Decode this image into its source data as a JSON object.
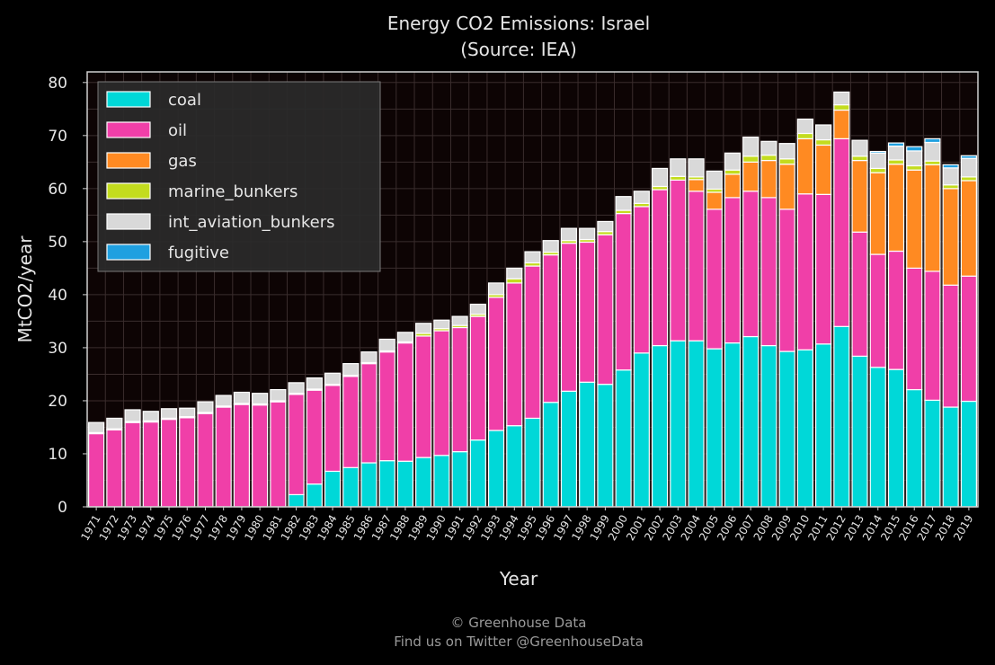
{
  "chart_data": {
    "type": "bar",
    "stacked": true,
    "title": "Energy CO2 Emissions: Israel",
    "subtitle": "(Source: IEA)",
    "xlabel": "Year",
    "ylabel": "MtCO2/year",
    "ylim": [
      0,
      82
    ],
    "yticks": [
      0,
      10,
      20,
      30,
      40,
      50,
      60,
      70,
      80
    ],
    "grid": true,
    "legend_position": "top-left",
    "categories": [
      "1971",
      "1972",
      "1973",
      "1974",
      "1975",
      "1976",
      "1977",
      "1978",
      "1979",
      "1980",
      "1981",
      "1982",
      "1983",
      "1984",
      "1985",
      "1986",
      "1987",
      "1988",
      "1989",
      "1990",
      "1991",
      "1992",
      "1993",
      "1994",
      "1995",
      "1996",
      "1997",
      "1998",
      "1999",
      "2000",
      "2001",
      "2002",
      "2003",
      "2004",
      "2005",
      "2006",
      "2007",
      "2008",
      "2009",
      "2010",
      "2011",
      "2012",
      "2013",
      "2014",
      "2015",
      "2016",
      "2017",
      "2018",
      "2019"
    ],
    "series": [
      {
        "name": "coal",
        "color": "#00d8d8",
        "values": [
          0,
          0,
          0,
          0,
          0,
          0,
          0,
          0,
          0,
          0,
          0,
          2.3,
          4.3,
          6.7,
          7.4,
          8.3,
          8.7,
          8.6,
          9.3,
          9.7,
          10.4,
          12.6,
          14.4,
          15.3,
          16.7,
          19.7,
          21.8,
          23.5,
          23.1,
          25.8,
          29.0,
          30.4,
          31.3,
          31.3,
          29.8,
          30.9,
          32.1,
          30.4,
          29.3,
          29.6,
          30.7,
          34.0,
          28.4,
          26.3,
          25.9,
          22.1,
          20.1,
          18.8,
          19.9
        ]
      },
      {
        "name": "oil",
        "color": "#f03fa8",
        "values": [
          13.8,
          14.5,
          15.9,
          16.0,
          16.5,
          16.8,
          17.6,
          18.8,
          19.3,
          19.2,
          19.8,
          18.9,
          17.7,
          16.2,
          17.2,
          18.7,
          20.5,
          22.3,
          22.9,
          23.5,
          23.4,
          23.3,
          25.1,
          26.9,
          28.7,
          27.8,
          27.9,
          26.4,
          28.2,
          29.5,
          27.6,
          29.4,
          30.3,
          28.2,
          26.3,
          27.4,
          27.4,
          27.9,
          26.8,
          29.4,
          28.2,
          35.4,
          23.4,
          21.3,
          22.3,
          22.9,
          24.3,
          23.0,
          23.6
        ]
      },
      {
        "name": "gas",
        "color": "#ff8a22",
        "values": [
          0,
          0,
          0,
          0,
          0,
          0,
          0,
          0,
          0,
          0,
          0,
          0,
          0,
          0,
          0,
          0,
          0,
          0,
          0,
          0,
          0,
          0,
          0,
          0,
          0,
          0,
          0,
          0,
          0,
          0,
          0,
          0,
          0,
          2.2,
          3.2,
          4.4,
          5.5,
          7.0,
          8.5,
          10.4,
          9.3,
          5.4,
          13.5,
          15.4,
          16.4,
          18.5,
          20.1,
          18.2,
          18.0
        ]
      },
      {
        "name": "marine_bunkers",
        "color": "#c3dc1e",
        "values": [
          0.2,
          0.2,
          0.2,
          0.2,
          0.2,
          0.2,
          0.2,
          0.2,
          0.2,
          0.2,
          0.2,
          0.2,
          0.2,
          0.2,
          0.2,
          0.2,
          0.2,
          0.2,
          0.5,
          0.4,
          0.4,
          0.4,
          0.5,
          0.8,
          0.6,
          0.5,
          0.5,
          0.5,
          0.6,
          0.6,
          0.6,
          0.6,
          0.7,
          0.5,
          0.6,
          0.8,
          1.1,
          1.0,
          1.0,
          1.0,
          1.0,
          1.0,
          0.8,
          0.8,
          0.8,
          0.8,
          0.7,
          0.7,
          0.7
        ]
      },
      {
        "name": "int_aviation_bunkers",
        "color": "#d9d9d9",
        "values": [
          1.9,
          2.0,
          2.2,
          1.8,
          1.8,
          1.6,
          2.0,
          2.0,
          2.1,
          2.0,
          2.1,
          2.0,
          2.1,
          2.1,
          2.2,
          2.0,
          2.2,
          1.8,
          1.9,
          1.6,
          1.7,
          1.9,
          2.2,
          2.0,
          2.1,
          2.2,
          2.3,
          2.1,
          1.9,
          2.6,
          2.3,
          3.4,
          3.3,
          3.4,
          3.4,
          3.2,
          3.6,
          2.6,
          2.9,
          2.7,
          2.8,
          2.4,
          3.0,
          2.9,
          2.6,
          2.8,
          3.5,
          3.2,
          3.5
        ]
      },
      {
        "name": "fugitive",
        "color": "#1fa0e0",
        "values": [
          0,
          0,
          0,
          0,
          0,
          0,
          0,
          0,
          0,
          0,
          0,
          0,
          0,
          0,
          0,
          0,
          0,
          0,
          0,
          0,
          0,
          0,
          0,
          0,
          0,
          0,
          0,
          0,
          0,
          0,
          0,
          0,
          0,
          0,
          0,
          0,
          0,
          0,
          0,
          0,
          0,
          0,
          0,
          0.3,
          0.6,
          0.8,
          0.7,
          0.6,
          0.5
        ]
      }
    ]
  },
  "footer": {
    "line1": "© Greenhouse Data",
    "line2": "Find us on Twitter @GreenhouseData"
  }
}
